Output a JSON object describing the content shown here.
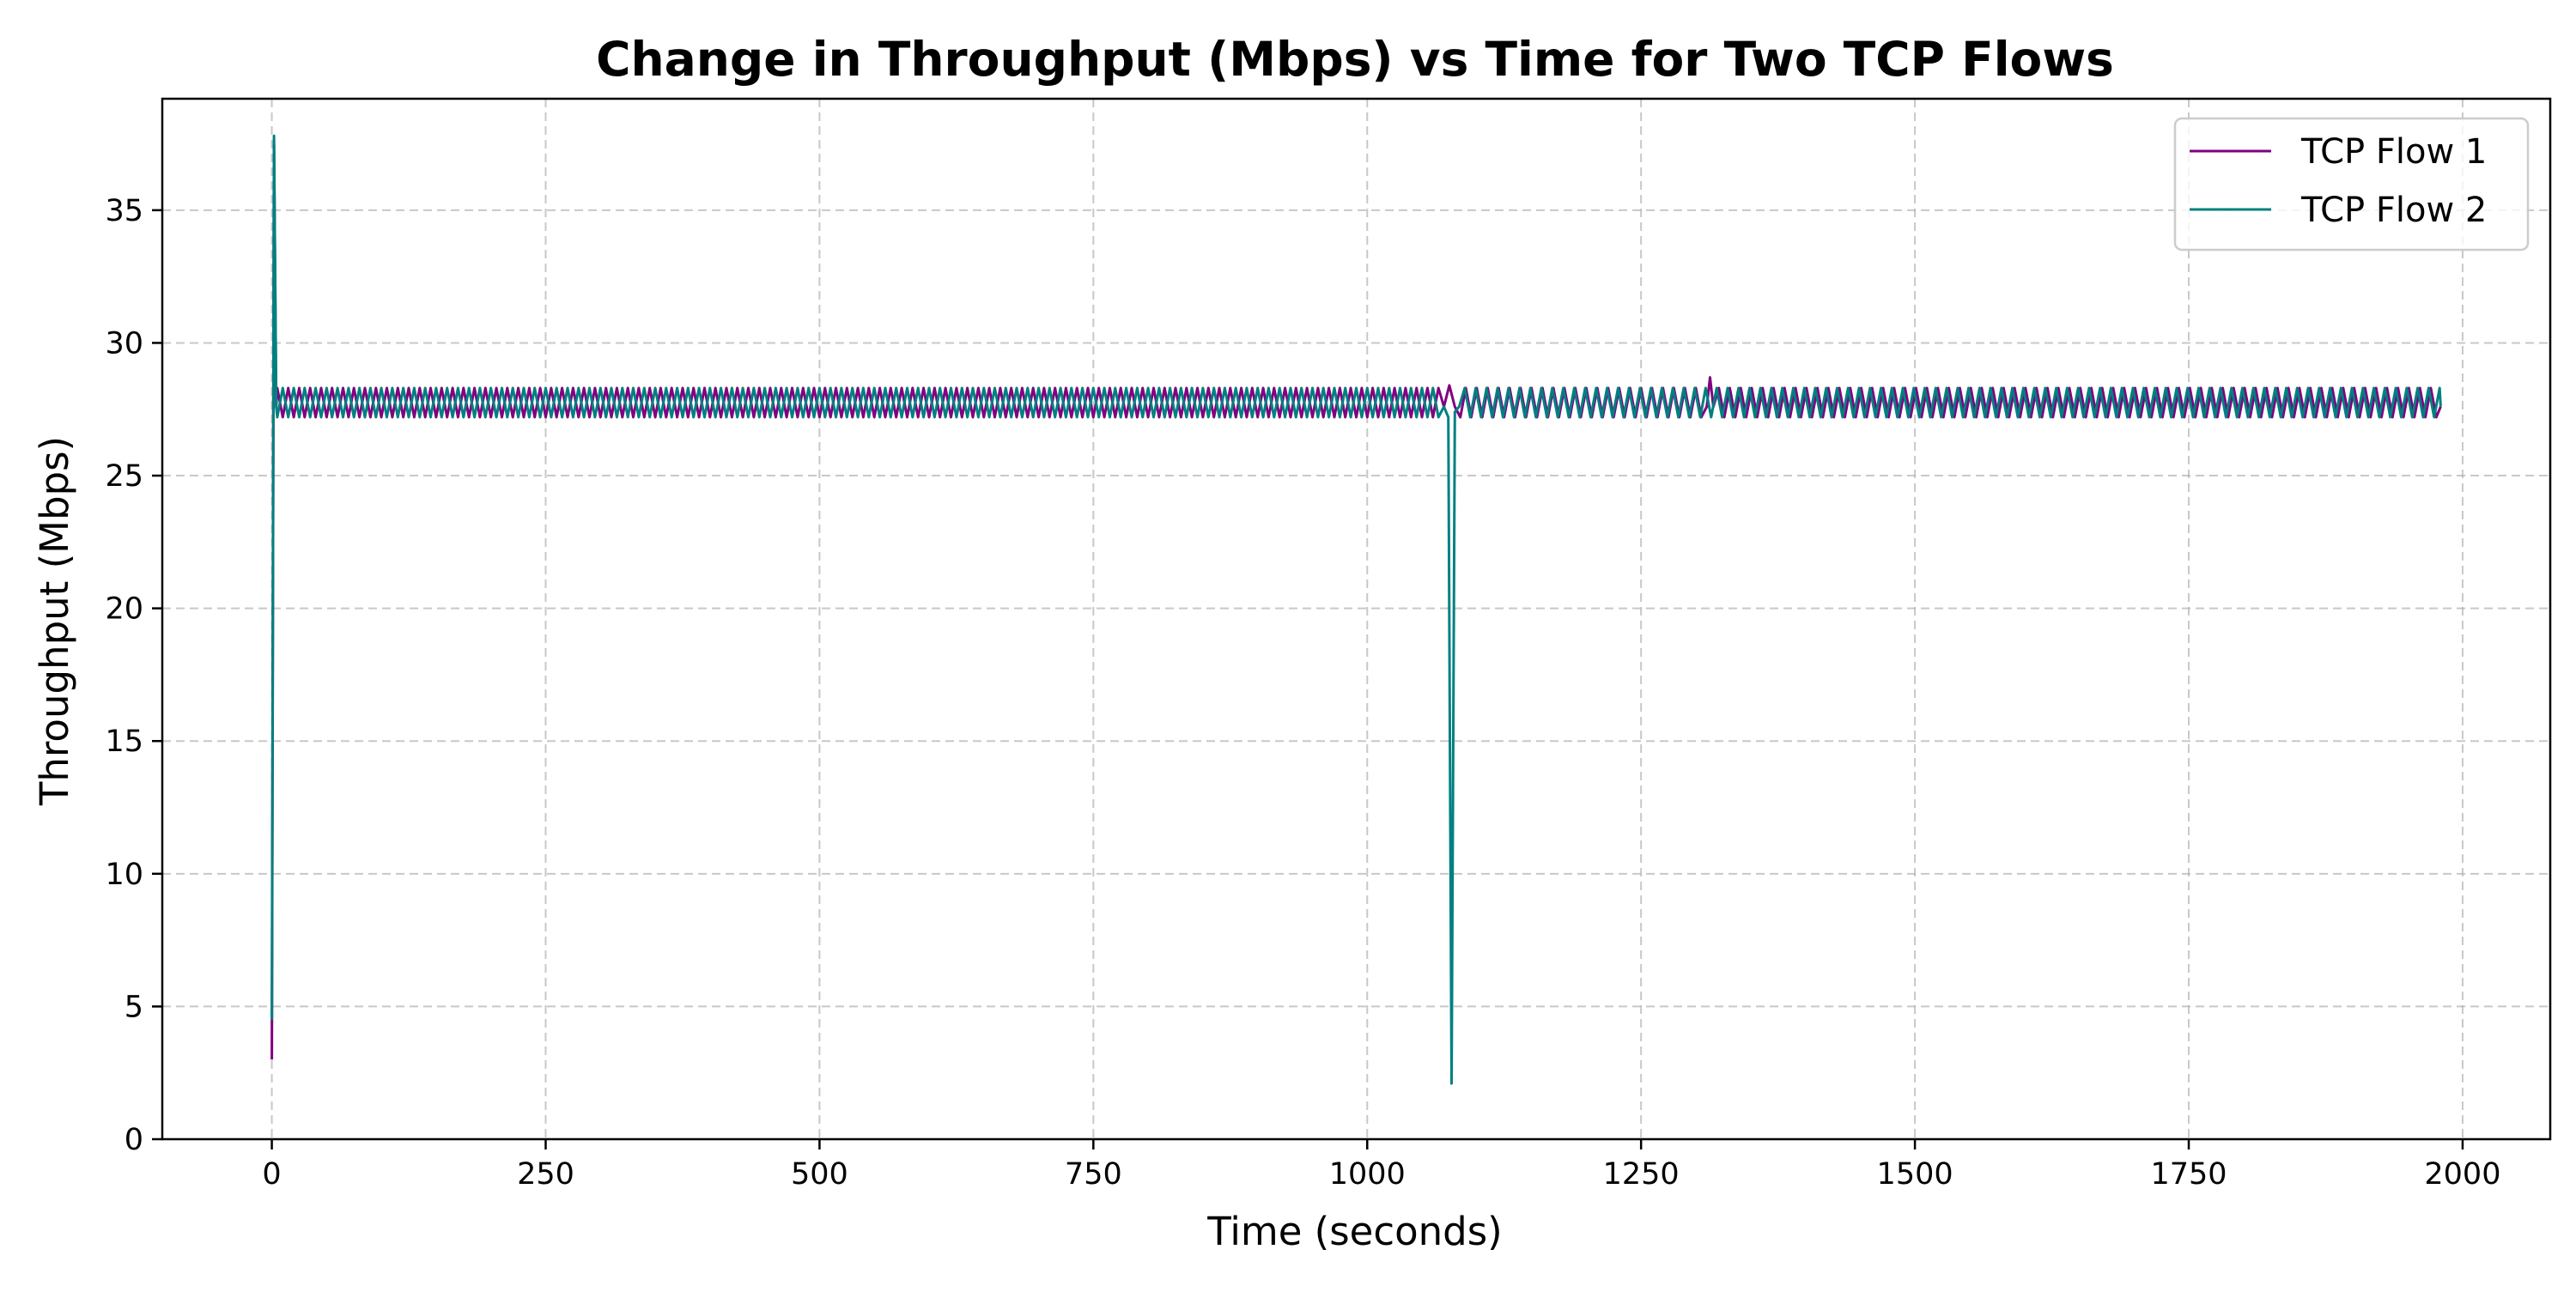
{
  "chart_data": {
    "type": "line",
    "title": "Change in Throughput (Mbps) vs Time for Two TCP Flows",
    "xlabel": "Time (seconds)",
    "ylabel": "Throughput (Mbps)",
    "xlim": [
      -100,
      2080
    ],
    "ylim": [
      0,
      39.2
    ],
    "xticks": [
      0,
      250,
      500,
      750,
      1000,
      1250,
      1500,
      1750,
      2000
    ],
    "xtick_labels": [
      "0",
      "250",
      "500",
      "750",
      "1000",
      "1250",
      "1500",
      "1750",
      "2000"
    ],
    "yticks": [
      0,
      5,
      10,
      15,
      20,
      25,
      30,
      35
    ],
    "ytick_labels": [
      "0",
      "5",
      "10",
      "15",
      "20",
      "25",
      "30",
      "35"
    ],
    "grid": true,
    "legend_position": "top-right",
    "series": [
      {
        "name": "TCP Flow 1",
        "color": "#800080",
        "x": [
          0,
          2,
          4,
          1070,
          1075,
          1080,
          1310,
          1313,
          1316,
          1980
        ],
        "y": [
          3.0,
          37.5,
          27.6,
          27.6,
          28.4,
          27.6,
          27.6,
          28.7,
          27.6,
          27.6
        ],
        "oscillation": {
          "period": 10,
          "low": 27.2,
          "high": 28.3,
          "from": 5,
          "to": 1980
        }
      },
      {
        "name": "TCP Flow 2",
        "color": "#008080",
        "x": [
          0,
          2,
          4,
          1070,
          1074,
          1077,
          1080,
          1084,
          1980
        ],
        "y": [
          4.5,
          37.8,
          27.6,
          27.6,
          27.2,
          2.1,
          27.4,
          27.6,
          27.6
        ],
        "oscillation": {
          "period": 10,
          "low": 27.2,
          "high": 28.3,
          "from": 5,
          "to": 1980
        }
      }
    ]
  }
}
